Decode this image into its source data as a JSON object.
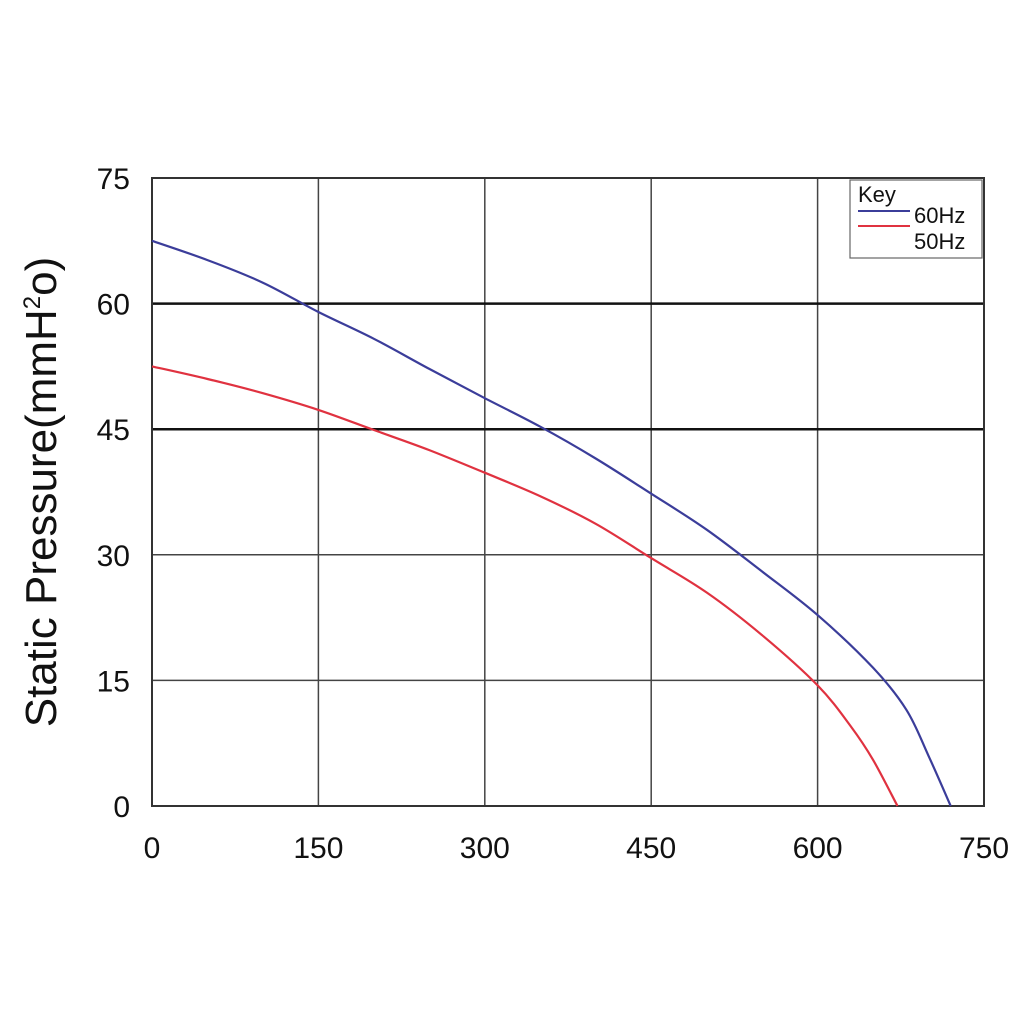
{
  "chart_data": {
    "type": "line",
    "title": "",
    "xlabel": "",
    "ylabel": "Static Pressure(mmH",
    "ylabel_sup": "2",
    "ylabel_tail": "o)",
    "xlim": [
      0,
      750
    ],
    "ylim": [
      0,
      75
    ],
    "x_ticks": [
      "0",
      "150",
      "300",
      "450",
      "600",
      "750"
    ],
    "y_ticks": [
      "0",
      "15",
      "30",
      "45",
      "60",
      "75"
    ],
    "grid": true,
    "legend": {
      "title": "Key",
      "placement": "top-right",
      "entries": [
        "60Hz",
        "50Hz"
      ]
    },
    "series": [
      {
        "name": "60Hz",
        "color": "#3b3d9a",
        "x": [
          0,
          50,
          100,
          150,
          200,
          250,
          300,
          350,
          400,
          450,
          500,
          550,
          600,
          650,
          680,
          700,
          720
        ],
        "y": [
          67.5,
          65.2,
          62.5,
          59.0,
          55.8,
          52.2,
          48.7,
          45.3,
          41.5,
          37.3,
          33.0,
          28.0,
          22.8,
          16.5,
          11.5,
          6.0,
          0
        ]
      },
      {
        "name": "50Hz",
        "color": "#e03240",
        "x": [
          0,
          50,
          100,
          150,
          200,
          250,
          300,
          350,
          400,
          450,
          500,
          550,
          600,
          630,
          650,
          672
        ],
        "y": [
          52.5,
          51.0,
          49.3,
          47.3,
          44.9,
          42.5,
          39.8,
          37.0,
          33.7,
          29.6,
          25.5,
          20.4,
          14.4,
          9.5,
          5.5,
          0
        ]
      }
    ]
  }
}
